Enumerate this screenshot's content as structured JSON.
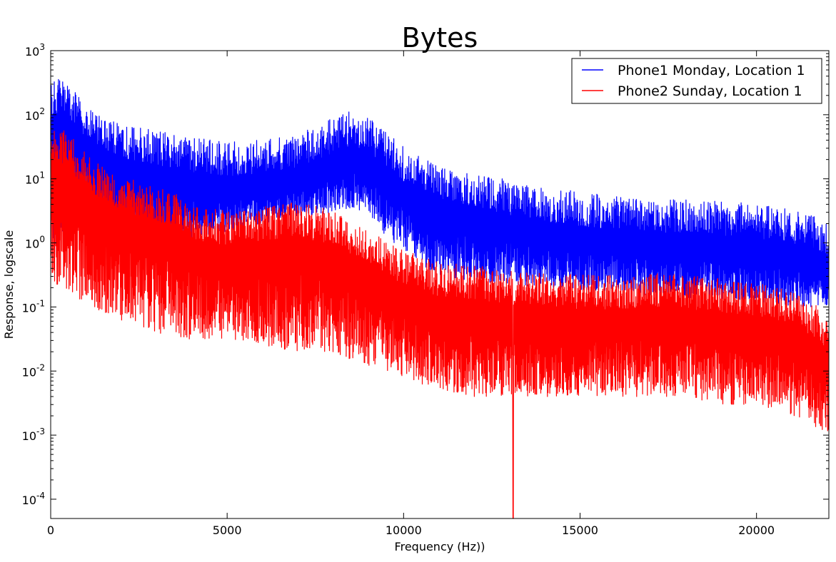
{
  "chart_data": {
    "type": "line",
    "title": "Bytes",
    "xlabel": "Frequency (Hz))",
    "ylabel": "Response, logscale",
    "xlim": [
      0,
      22050
    ],
    "ylim": [
      5e-05,
      1000
    ],
    "yscale": "log",
    "x_ticks": [
      0,
      5000,
      10000,
      15000,
      20000
    ],
    "y_ticks": [
      {
        "value": 0.0001,
        "base": "10",
        "exp": "-4"
      },
      {
        "value": 0.001,
        "base": "10",
        "exp": "-3"
      },
      {
        "value": 0.01,
        "base": "10",
        "exp": "-2"
      },
      {
        "value": 0.1,
        "base": "10",
        "exp": "-1"
      },
      {
        "value": 1,
        "base": "10",
        "exp": "0"
      },
      {
        "value": 10,
        "base": "10",
        "exp": "1"
      },
      {
        "value": 100,
        "base": "10",
        "exp": "2"
      },
      {
        "value": 1000,
        "base": "10",
        "exp": "3"
      }
    ],
    "grid": false,
    "legend_position": "top-right",
    "series": [
      {
        "name": "Phone1 Monday, Location 1",
        "color": "#0000ff",
        "x": [
          0,
          200,
          400,
          600,
          1000,
          1500,
          2000,
          2500,
          3000,
          3500,
          4000,
          5000,
          6000,
          7000,
          8000,
          8500,
          9000,
          9500,
          10000,
          10500,
          11000,
          12000,
          13000,
          14000,
          15000,
          16000,
          17000,
          18000,
          19000,
          20000,
          21000,
          21500,
          22050
        ],
        "center": [
          50,
          60,
          55,
          40,
          25,
          15,
          12,
          10,
          9,
          8,
          7,
          6,
          6.5,
          8,
          14,
          18,
          14,
          9,
          5,
          3.5,
          2.5,
          2,
          1.5,
          1.2,
          1,
          0.9,
          0.8,
          0.75,
          0.7,
          0.65,
          0.55,
          0.45,
          0.35
        ],
        "low": [
          0.5,
          0.8,
          1.5,
          2,
          2,
          1.5,
          1.2,
          1,
          1,
          1.2,
          1.2,
          1.5,
          2,
          2.5,
          3,
          3.5,
          3,
          1.2,
          0.8,
          0.4,
          0.3,
          0.25,
          0.22,
          0.2,
          0.18,
          0.18,
          0.15,
          0.14,
          0.13,
          0.12,
          0.1,
          0.1,
          0.1
        ]
      },
      {
        "name": "Phone2 Sunday, Location 1",
        "color": "#ff0000",
        "x": [
          0,
          200,
          400,
          600,
          1000,
          1500,
          2000,
          2500,
          3000,
          3500,
          4000,
          5000,
          6000,
          7000,
          8000,
          8500,
          9000,
          9500,
          10000,
          10500,
          11000,
          12000,
          13000,
          14000,
          15000,
          16000,
          17000,
          18000,
          19000,
          20000,
          21000,
          21500,
          22050
        ],
        "center": [
          8,
          10,
          9,
          7,
          4,
          2.5,
          1.8,
          1.4,
          1.2,
          1,
          0.6,
          0.5,
          0.6,
          0.7,
          0.5,
          0.35,
          0.25,
          0.18,
          0.12,
          0.1,
          0.08,
          0.07,
          0.06,
          0.055,
          0.05,
          0.05,
          0.055,
          0.05,
          0.045,
          0.04,
          0.03,
          0.02,
          0.012
        ],
        "low": [
          0.3,
          0.2,
          0.2,
          0.15,
          0.1,
          0.08,
          0.06,
          0.05,
          0.04,
          0.035,
          0.03,
          0.03,
          0.025,
          0.02,
          0.02,
          0.015,
          0.012,
          0.01,
          0.008,
          0.006,
          0.005,
          0.004,
          0.004,
          0.004,
          0.004,
          0.004,
          0.004,
          0.004,
          0.003,
          0.003,
          0.002,
          0.0015,
          0.001
        ],
        "dip": {
          "x": 13100,
          "y": 5e-05
        }
      }
    ]
  }
}
